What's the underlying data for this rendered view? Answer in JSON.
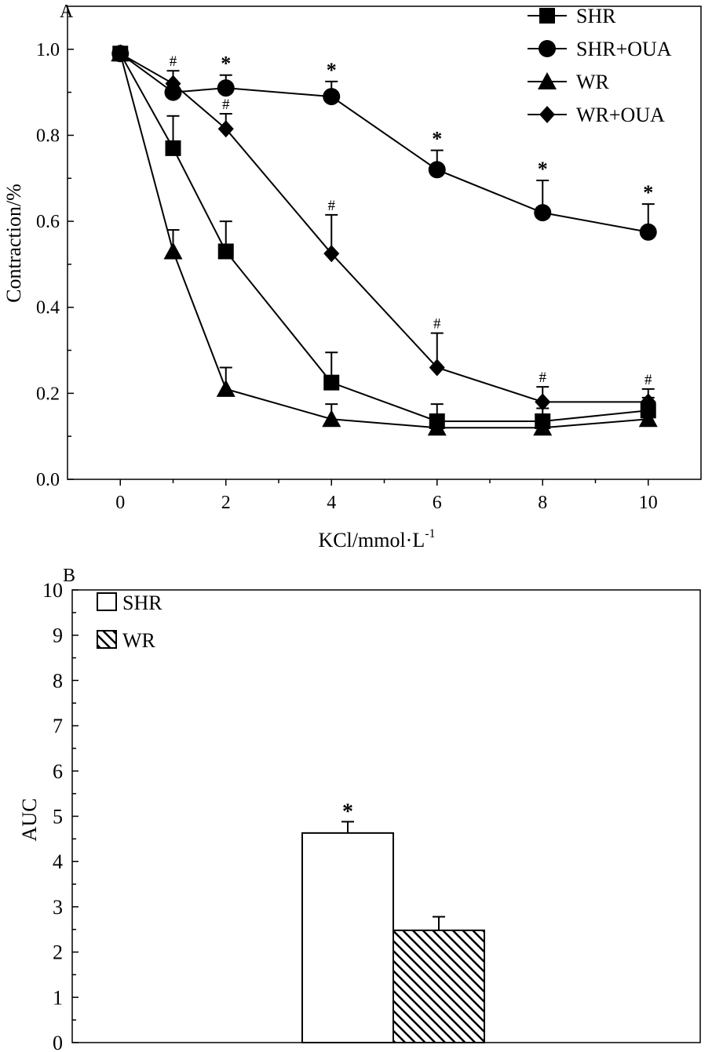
{
  "chart_data": [
    {
      "panel": "A",
      "type": "line",
      "xlabel": "KCl/mmol·L",
      "xlabel_superscript": "-1",
      "ylabel": "Contraction/%",
      "x": [
        0,
        1,
        2,
        4,
        6,
        8,
        10
      ],
      "xticks": [
        "0",
        "2",
        "4",
        "6",
        "8",
        "10"
      ],
      "yticks": [
        "0.0",
        "0.2",
        "0.4",
        "0.6",
        "0.8",
        "1.0"
      ],
      "xlim": [
        -1,
        11
      ],
      "ylim": [
        0,
        1.1
      ],
      "series": [
        {
          "name": "SHR",
          "marker": "square",
          "values": [
            0.99,
            0.77,
            0.53,
            0.225,
            0.135,
            0.135,
            0.16
          ],
          "errors": [
            0,
            0.075,
            0.07,
            0.07,
            0.04,
            0.03,
            0.03
          ]
        },
        {
          "name": "SHR+OUA",
          "marker": "circle",
          "values": [
            0.99,
            0.9,
            0.91,
            0.89,
            0.72,
            0.62,
            0.575
          ],
          "errors": [
            0,
            0.02,
            0.03,
            0.035,
            0.045,
            0.075,
            0.065
          ],
          "annotations": [
            "",
            "",
            "*",
            "*",
            "*",
            "*",
            "*"
          ]
        },
        {
          "name": "WR",
          "marker": "triangle",
          "values": [
            0.99,
            0.53,
            0.21,
            0.14,
            0.12,
            0.12,
            0.14
          ],
          "errors": [
            0,
            0.05,
            0.05,
            0.035,
            0.02,
            0.02,
            0.02
          ]
        },
        {
          "name": "WR+OUA",
          "marker": "diamond",
          "values": [
            0.99,
            0.92,
            0.815,
            0.525,
            0.26,
            0.18,
            0.18
          ],
          "errors": [
            0,
            0.03,
            0.035,
            0.09,
            0.08,
            0.035,
            0.03
          ],
          "annotations": [
            "",
            "#",
            "#",
            "#",
            "#",
            "#",
            "#"
          ]
        }
      ]
    },
    {
      "panel": "B",
      "type": "bar",
      "ylabel": "AUC",
      "yticks": [
        "0",
        "1",
        "2",
        "3",
        "4",
        "5",
        "6",
        "7",
        "8",
        "9",
        "10"
      ],
      "ylim": [
        0,
        10
      ],
      "series": [
        {
          "name": "SHR",
          "fill": "white",
          "value": 4.63,
          "error": 0.25,
          "annotation": "*"
        },
        {
          "name": "WR",
          "fill": "hatched",
          "value": 2.48,
          "error": 0.3,
          "annotation": ""
        }
      ]
    }
  ]
}
